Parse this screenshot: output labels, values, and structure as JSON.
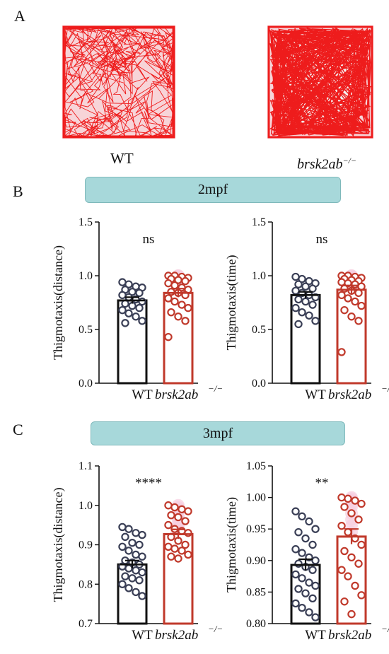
{
  "panels": {
    "A": "A",
    "B": "B",
    "C": "C"
  },
  "tracks": {
    "wt_label": "WT",
    "mut_label": "brsk2ab",
    "mut_superscript": "−/−"
  },
  "banners": {
    "b": "2mpf",
    "c": "3mpf"
  },
  "colors": {
    "wt": "#111111",
    "wt_dot": "#3a3f56",
    "mut": "#c0392b",
    "mut_dot": "#c0392b",
    "track_red": "#ee1c1c",
    "banner": "#a7d8da"
  },
  "chart_data": [
    {
      "id": "b-distance",
      "type": "bar",
      "ylabel": "Thigmotaxis(distance)",
      "ylim": [
        0.0,
        1.5
      ],
      "yticks": [
        "0.0",
        "0.5",
        "1.0",
        "1.5"
      ],
      "significance": "ns",
      "categories": [
        "WT",
        "brsk2ab"
      ],
      "category_superscript": [
        "",
        "−/−"
      ],
      "means": [
        0.77,
        0.84
      ],
      "sem": [
        0.03,
        0.04
      ],
      "points": [
        [
          0.94,
          0.92,
          0.9,
          0.89,
          0.87,
          0.85,
          0.84,
          0.82,
          0.8,
          0.78,
          0.76,
          0.74,
          0.72,
          0.7,
          0.68,
          0.65,
          0.62,
          0.58,
          0.56
        ],
        [
          1.0,
          1.0,
          0.99,
          0.98,
          0.97,
          0.96,
          0.95,
          0.93,
          0.91,
          0.89,
          0.87,
          0.85,
          0.84,
          0.82,
          0.79,
          0.76,
          0.73,
          0.7,
          0.66,
          0.62,
          0.58,
          0.43
        ]
      ]
    },
    {
      "id": "b-time",
      "type": "bar",
      "ylabel": "Thigmotaxis(time)",
      "ylim": [
        0.0,
        1.5
      ],
      "yticks": [
        "0.0",
        "0.5",
        "1.0",
        "1.5"
      ],
      "significance": "ns",
      "categories": [
        "WT",
        "brsk2ab"
      ],
      "category_superscript": [
        "",
        "−/−"
      ],
      "means": [
        0.82,
        0.87
      ],
      "sem": [
        0.03,
        0.04
      ],
      "points": [
        [
          0.99,
          0.97,
          0.95,
          0.93,
          0.92,
          0.9,
          0.88,
          0.86,
          0.84,
          0.82,
          0.8,
          0.78,
          0.76,
          0.73,
          0.7,
          0.66,
          0.63,
          0.58,
          0.55
        ],
        [
          1.0,
          1.0,
          0.99,
          0.98,
          0.97,
          0.96,
          0.95,
          0.94,
          0.93,
          0.92,
          0.9,
          0.88,
          0.86,
          0.84,
          0.82,
          0.79,
          0.76,
          0.72,
          0.68,
          0.62,
          0.58,
          0.29
        ]
      ]
    },
    {
      "id": "c-distance",
      "type": "bar",
      "ylabel": "Thigmotaxis(distance)",
      "ylim": [
        0.7,
        1.1
      ],
      "yticks": [
        "0.7",
        "0.8",
        "0.9",
        "1.0",
        "1.1"
      ],
      "significance": "****",
      "categories": [
        "WT",
        "brsk2ab"
      ],
      "category_superscript": [
        "",
        "−/−"
      ],
      "means": [
        0.85,
        0.927
      ],
      "sem": [
        0.01,
        0.012
      ],
      "points": [
        [
          0.945,
          0.94,
          0.93,
          0.925,
          0.92,
          0.905,
          0.9,
          0.895,
          0.885,
          0.875,
          0.87,
          0.86,
          0.855,
          0.85,
          0.845,
          0.84,
          0.835,
          0.83,
          0.82,
          0.815,
          0.81,
          0.8,
          0.79,
          0.78,
          0.77
        ],
        [
          1.0,
          0.995,
          0.99,
          0.985,
          0.975,
          0.97,
          0.96,
          0.95,
          0.94,
          0.935,
          0.93,
          0.92,
          0.91,
          0.9,
          0.895,
          0.89,
          0.885,
          0.875,
          0.87,
          0.865
        ]
      ]
    },
    {
      "id": "c-time",
      "type": "bar",
      "ylabel": "Thigmotaxis(time)",
      "ylim": [
        0.8,
        1.05
      ],
      "yticks": [
        "0.80",
        "0.85",
        "0.90",
        "0.95",
        "1.00",
        "1.05"
      ],
      "significance": "**",
      "categories": [
        "WT",
        "brsk2ab"
      ],
      "category_superscript": [
        "",
        "−/−"
      ],
      "means": [
        0.893,
        0.938
      ],
      "sem": [
        0.009,
        0.012
      ],
      "points": [
        [
          0.978,
          0.97,
          0.962,
          0.95,
          0.945,
          0.935,
          0.925,
          0.918,
          0.912,
          0.905,
          0.9,
          0.895,
          0.89,
          0.885,
          0.878,
          0.872,
          0.865,
          0.86,
          0.855,
          0.848,
          0.84,
          0.832,
          0.825,
          0.818,
          0.81
        ],
        [
          1.0,
          0.998,
          0.995,
          0.99,
          0.985,
          0.975,
          0.965,
          0.955,
          0.945,
          0.935,
          0.925,
          0.915,
          0.905,
          0.895,
          0.885,
          0.875,
          0.86,
          0.845,
          0.835,
          0.815
        ]
      ]
    }
  ]
}
